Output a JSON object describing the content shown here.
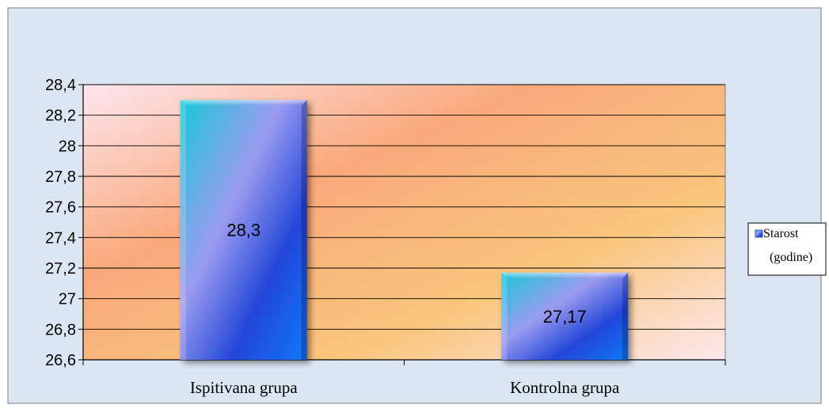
{
  "chart_data": {
    "type": "bar",
    "categories": [
      "Ispitivana grupa",
      "Kontrolna grupa"
    ],
    "series": [
      {
        "name": "Starost (godine)",
        "values": [
          28.3,
          27.17
        ]
      }
    ],
    "data_labels": [
      "28,3",
      "27,17"
    ],
    "y_ticks": [
      "26,6",
      "26,8",
      "27",
      "27,2",
      "27,4",
      "27,6",
      "27,8",
      "28",
      "28,2",
      "28,4"
    ],
    "ylim": [
      26.6,
      28.4
    ],
    "y_step": 0.2,
    "grid": true,
    "legend": {
      "position": "right",
      "lines": [
        "Starost",
        "(godine)"
      ]
    },
    "colors": {
      "chart_background": "#dce6f2",
      "plot_gradient": [
        "#fde6ef",
        "#f9a97b",
        "#f9c67d",
        "#fde8ef"
      ],
      "bar_gradient": [
        "#19c7d7",
        "#9b9cf0",
        "#2347d8",
        "#0f78f8"
      ],
      "gridline": "#000000",
      "border": "#7f7f7f"
    }
  }
}
